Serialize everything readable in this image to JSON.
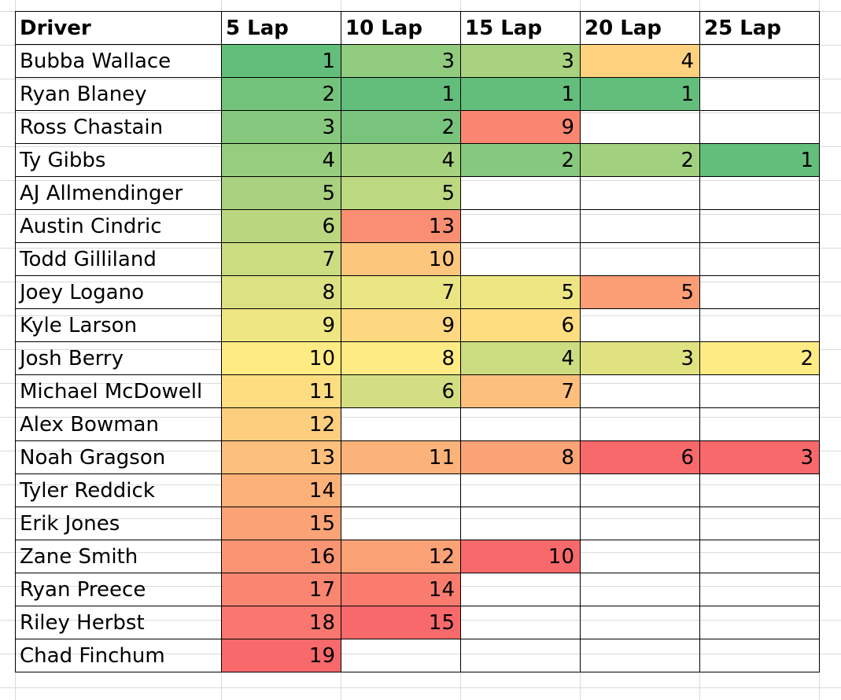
{
  "table": {
    "headers": [
      "Driver",
      "5 Lap",
      "10 Lap",
      "15 Lap",
      "20 Lap",
      "25 Lap"
    ],
    "rows": [
      {
        "driver": "Bubba Wallace",
        "values": [
          1,
          3,
          3,
          4,
          null
        ]
      },
      {
        "driver": "Ryan Blaney",
        "values": [
          2,
          1,
          1,
          1,
          null
        ]
      },
      {
        "driver": "Ross Chastain",
        "values": [
          3,
          2,
          9,
          null,
          null
        ]
      },
      {
        "driver": "Ty Gibbs",
        "values": [
          4,
          4,
          2,
          2,
          1
        ]
      },
      {
        "driver": "AJ Allmendinger",
        "values": [
          5,
          5,
          null,
          null,
          null
        ]
      },
      {
        "driver": "Austin Cindric",
        "values": [
          6,
          13,
          null,
          null,
          null
        ]
      },
      {
        "driver": "Todd Gilliland",
        "values": [
          7,
          10,
          null,
          null,
          null
        ]
      },
      {
        "driver": "Joey Logano",
        "values": [
          8,
          7,
          5,
          5,
          null
        ]
      },
      {
        "driver": "Kyle Larson",
        "values": [
          9,
          9,
          6,
          null,
          null
        ]
      },
      {
        "driver": "Josh Berry",
        "values": [
          10,
          8,
          4,
          3,
          2
        ]
      },
      {
        "driver": "Michael McDowell",
        "values": [
          11,
          6,
          7,
          null,
          null
        ]
      },
      {
        "driver": "Alex Bowman",
        "values": [
          12,
          null,
          null,
          null,
          null
        ]
      },
      {
        "driver": "Noah Gragson",
        "values": [
          13,
          11,
          8,
          6,
          3
        ]
      },
      {
        "driver": "Tyler Reddick",
        "values": [
          14,
          null,
          null,
          null,
          null
        ]
      },
      {
        "driver": "Erik Jones",
        "values": [
          15,
          null,
          null,
          null,
          null
        ]
      },
      {
        "driver": "Zane Smith",
        "values": [
          16,
          12,
          10,
          null,
          null
        ]
      },
      {
        "driver": "Ryan Preece",
        "values": [
          17,
          14,
          null,
          null,
          null
        ]
      },
      {
        "driver": "Riley Herbst",
        "values": [
          18,
          15,
          null,
          null,
          null
        ]
      },
      {
        "driver": "Chad Finchum",
        "values": [
          19,
          null,
          null,
          null,
          null
        ]
      }
    ]
  },
  "color_scale": {
    "best": "#63be7b",
    "middle": "#ffeb84",
    "worst": "#f8696b"
  }
}
